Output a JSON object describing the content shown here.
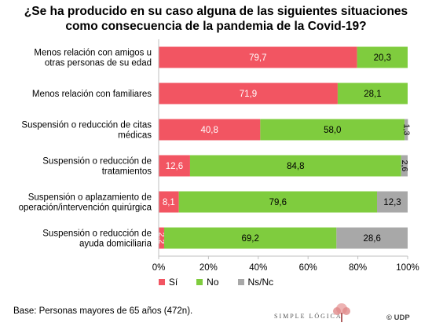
{
  "title_lines": [
    "¿Se ha producido en su caso alguna de las siguientes situaciones",
    "como consecuencia de la pandemia de la Covid-19?"
  ],
  "colors": {
    "si": "#f25562",
    "no": "#7fcc3e",
    "nsnc": "#a8a8a8"
  },
  "chart_data": {
    "type": "bar",
    "orientation": "horizontal",
    "stacked": true,
    "categories": [
      [
        "Menos relación con amigos u",
        "otras personas de su edad"
      ],
      [
        "Menos relación con familiares"
      ],
      [
        "Suspensión o reducción de citas",
        "médicas"
      ],
      [
        "Suspensión o reducción de",
        "tratamientos"
      ],
      [
        "Suspensión o aplazamiento de",
        "operación/intervención quirúrgica"
      ],
      [
        "Suspensión o reducción de",
        "ayuda domiciliaria"
      ]
    ],
    "series": [
      {
        "name": "Sí",
        "values": [
          79.7,
          71.9,
          40.8,
          12.6,
          8.1,
          2.2
        ],
        "labels": [
          "79,7",
          "71,9",
          "40,8",
          "12,6",
          "8,1",
          "2,2"
        ]
      },
      {
        "name": "No",
        "values": [
          20.3,
          28.1,
          58.0,
          84.8,
          79.6,
          69.2
        ],
        "labels": [
          "20,3",
          "28,1",
          "58,0",
          "84,8",
          "79,6",
          "69,2"
        ]
      },
      {
        "name": "Ns/Nc",
        "values": [
          0,
          0,
          1.3,
          2.6,
          12.3,
          28.6
        ],
        "labels": [
          "",
          "",
          "1,3",
          "2,6",
          "12,3",
          "28,6"
        ]
      }
    ],
    "xlim": [
      0,
      100
    ],
    "xticks": [
      "0%",
      "20%",
      "40%",
      "60%",
      "80%",
      "100%"
    ],
    "legend_position": "bottom",
    "grid": false
  },
  "footer": {
    "base_note": "Base: Personas mayores de 65 años (472n).",
    "brand": "SIMPLE LÓGICA",
    "copyright": "© UDP"
  }
}
